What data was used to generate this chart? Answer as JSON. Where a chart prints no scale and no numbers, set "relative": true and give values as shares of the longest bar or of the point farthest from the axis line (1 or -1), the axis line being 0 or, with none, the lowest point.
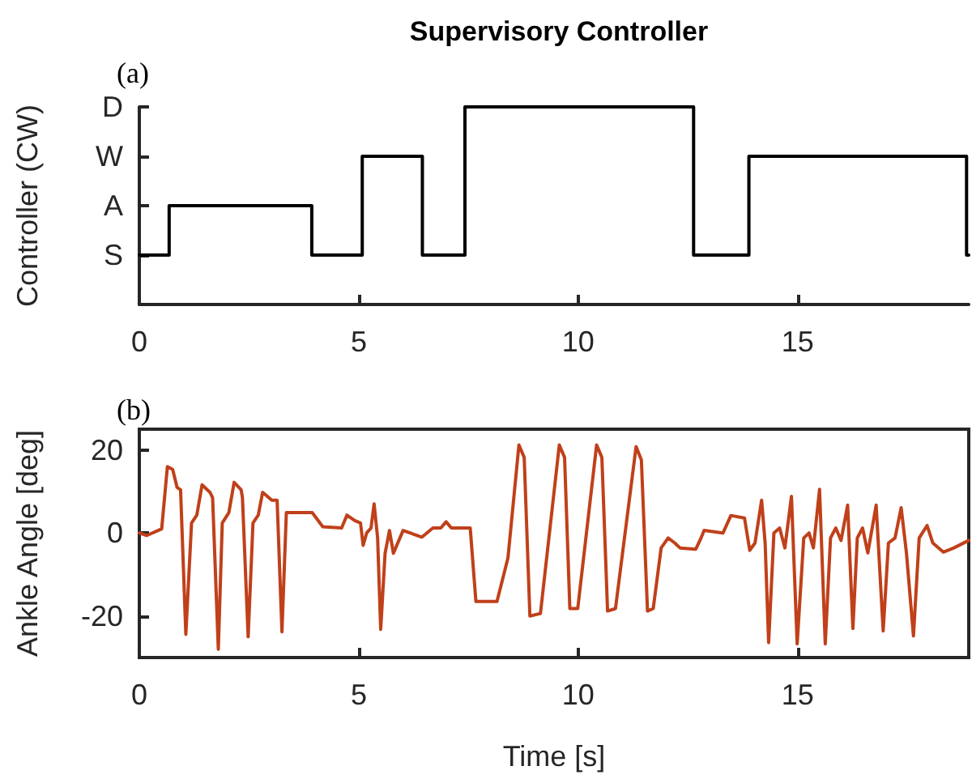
{
  "chart_data": [
    {
      "type": "step",
      "title": "Supervisory Controller",
      "ylabel": "Controller (CW)",
      "annotations": [
        "(a)"
      ],
      "x": [
        0,
        0.68,
        3.93,
        5.08,
        6.45,
        7.42,
        12.63,
        13.89,
        18.85,
        18.9
      ],
      "values": [
        0.25,
        0.5,
        0.25,
        0.75,
        0.25,
        1,
        0.25,
        0.75,
        0.25,
        0.25
      ],
      "color": "#000000",
      "relative": true,
      "xlim": [
        0,
        18.9
      ],
      "xticks": [
        0,
        5,
        10,
        15
      ],
      "y_categories": [
        "D",
        "W",
        "A",
        "S",
        null
      ]
    },
    {
      "type": "line",
      "xlabel": "Time [s]",
      "ylabel": "Ankle Angle [deg]",
      "annotations": [
        "(b)"
      ],
      "x": [
        0,
        0.17,
        0.51,
        0.64,
        0.76,
        0.86,
        0.94,
        1.06,
        1.19,
        1.31,
        1.43,
        1.61,
        1.67,
        1.8,
        1.89,
        2.04,
        2.16,
        2.32,
        2.35,
        2.48,
        2.59,
        2.71,
        2.81,
        3.02,
        3.14,
        3.25,
        3.35,
        3.94,
        4.18,
        4.61,
        4.73,
        4.91,
        5.04,
        5.1,
        5.18,
        5.28,
        5.35,
        5.43,
        5.5,
        5.6,
        5.7,
        5.79,
        6.01,
        6.44,
        6.69,
        6.87,
        6.99,
        7.11,
        7.54,
        7.67,
        8.15,
        8.4,
        8.65,
        8.77,
        8.9,
        9.14,
        9.57,
        9.69,
        9.81,
        9.99,
        10.42,
        10.54,
        10.67,
        10.85,
        11.32,
        11.44,
        11.58,
        11.71,
        11.89,
        12.05,
        12.2,
        12.32,
        12.68,
        12.8,
        12.87,
        13.3,
        13.48,
        13.79,
        13.91,
        14.03,
        14.18,
        14.26,
        14.34,
        14.46,
        14.59,
        14.71,
        14.86,
        14.99,
        15.14,
        15.26,
        15.36,
        15.5,
        15.63,
        15.75,
        15.87,
        15.99,
        16.14,
        16.26,
        16.36,
        16.48,
        16.6,
        16.79,
        16.95,
        17.07,
        17.22,
        17.36,
        17.48,
        17.64,
        17.77,
        17.95,
        18.08,
        18.32,
        18.56,
        18.9
      ],
      "values": [
        0,
        -0.6,
        1,
        16,
        15.3,
        11,
        10.4,
        -24.4,
        2.4,
        4.3,
        11.6,
        9.8,
        8.5,
        -28,
        2.4,
        4.9,
        12.2,
        10.4,
        8.5,
        -25,
        2.4,
        4.3,
        9.8,
        7.9,
        7.9,
        -23.8,
        4.9,
        4.9,
        1.5,
        1.2,
        4.3,
        3,
        2.4,
        -3,
        0,
        1.2,
        7,
        -1.2,
        -23.2,
        -4.9,
        0.6,
        -4.9,
        0.6,
        -1,
        1.2,
        1.2,
        2.7,
        1.2,
        1.2,
        -16.5,
        -16.5,
        -6,
        21.2,
        18.2,
        -20,
        -19.4,
        21.2,
        18.2,
        -18.2,
        -18.2,
        21.2,
        18.2,
        -18.8,
        -18.2,
        20.8,
        17.6,
        -18.8,
        -18.2,
        -3.6,
        -1.2,
        -2.4,
        -3.6,
        -3.9,
        -1.2,
        0.6,
        0,
        4.2,
        3.6,
        -4.2,
        -2.4,
        7.9,
        -2.4,
        -26.4,
        0,
        1.2,
        -3.6,
        8.8,
        -26.7,
        -1.2,
        0,
        -3.6,
        10.5,
        -26.7,
        -1.2,
        1.2,
        -1.8,
        6.7,
        -23,
        -1.2,
        1.2,
        -4.8,
        6.7,
        -23.6,
        -2.4,
        -1.2,
        6.1,
        -4.8,
        -24.8,
        -1.2,
        1.8,
        -2.4,
        -4.6,
        -3.6,
        -1.8
      ],
      "color": "#c0401a",
      "xlim": [
        0,
        18.9
      ],
      "xticks": [
        0,
        5,
        10,
        15
      ],
      "ylim": [
        -30,
        25
      ],
      "yticks": [
        -20,
        0,
        20
      ]
    }
  ]
}
